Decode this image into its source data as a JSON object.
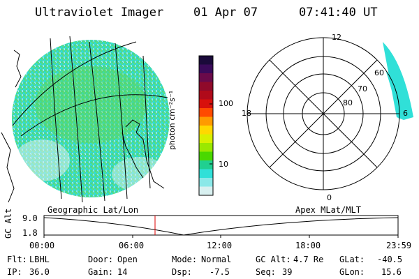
{
  "header": {
    "instrument": "Ultraviolet Imager",
    "date": "01 Apr 07",
    "time": "07:41:40 UT"
  },
  "colorbar": {
    "unit_label": "photon cm⁻²s⁻¹",
    "ticks": [
      "100",
      "10"
    ],
    "colors": [
      "#1a0a3a",
      "#3a0a5a",
      "#6a0a4a",
      "#900a2a",
      "#b00a1a",
      "#d8100c",
      "#ff4a00",
      "#ff9a00",
      "#ffd800",
      "#d8f000",
      "#9ae800",
      "#4ad800",
      "#20d090",
      "#30e0d8",
      "#8ae8e8",
      "#d8f0f0"
    ]
  },
  "polar": {
    "mlt_labels": {
      "top": "12",
      "left": "18",
      "right": "6",
      "bottom": "0"
    },
    "lat_labels": [
      "60",
      "70",
      "80"
    ]
  },
  "timeline": {
    "left_caption": "Geographic Lat/Lon",
    "right_caption": "Apex MLat/MLT",
    "axis_title": "GC Alt",
    "y_max": "9.0",
    "y_min": "1.8",
    "x_ticks": [
      "00:00",
      "06:00",
      "12:00",
      "18:00",
      "23:59"
    ]
  },
  "info": {
    "flt_label": "Flt:",
    "flt_value": "LBHL",
    "door_label": "Door:",
    "door_value": "Open",
    "mode_label": "Mode:",
    "mode_value": "Normal",
    "gcalt_label": "GC Alt:",
    "gcalt_value": "4.7 Re",
    "glat_label": "GLat:",
    "glat_value": "-40.5",
    "ip_label": "IP:",
    "ip_value": "36.0",
    "gain_label": "Gain:",
    "gain_value": "14",
    "dsp_label": "Dsp:",
    "dsp_value": "-7.5",
    "seq_label": "Seq:",
    "seq_value": "39",
    "glon_label": "GLon:",
    "glon_value": "15.6"
  }
}
